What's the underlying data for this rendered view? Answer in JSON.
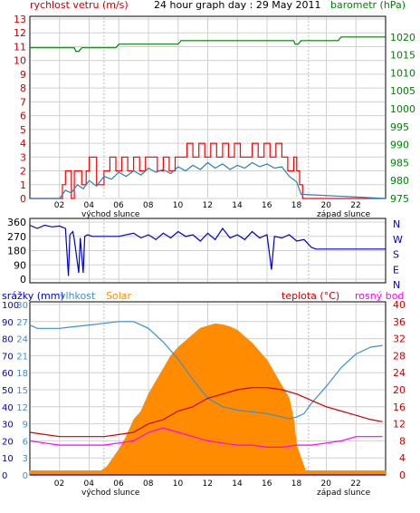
{
  "header": {
    "left_label": "rychlost vetru (m/s)",
    "title": "24 hour graph day : 29 May 2011",
    "right_label": "barometr (hPa)"
  },
  "colors": {
    "wind_gust": "#ff0000",
    "wind_avg": "#2a7fb8",
    "barometer": "#008000",
    "direction": "#0000cc",
    "rain": "#0000cc",
    "humidity": "#3a8fd6",
    "solar": "#ff8c00",
    "temperature": "#cc0000",
    "dew_point": "#ff00ff",
    "left_axis_red": "#cc0000",
    "right_axis_green": "#008000",
    "grid": "#d0d0d0"
  },
  "x_ticks": [
    "02",
    "04",
    "06",
    "08",
    "10",
    "12",
    "14",
    "16",
    "18",
    "20",
    "22"
  ],
  "markers": {
    "sunrise_label": "východ slunce",
    "sunset_label": "západ slunce"
  },
  "chart_data": [
    {
      "type": "line",
      "name": "wind-and-barometer",
      "xlim": [
        0,
        24
      ],
      "yleft": {
        "label": "rychlost vetru (m/s)",
        "lim": [
          0,
          13
        ],
        "ticks": [
          0,
          1,
          2,
          3,
          4,
          5,
          6,
          7,
          8,
          9,
          10,
          11,
          12,
          13
        ]
      },
      "yright": {
        "label": "barometr (hPa)",
        "lim": [
          975,
          1025
        ],
        "ticks": [
          975,
          980,
          985,
          990,
          995,
          1000,
          1005,
          1010,
          1015,
          1020
        ]
      },
      "series": [
        {
          "key": "gust",
          "axis": "left",
          "x": [
            0,
            2.1,
            2.2,
            2.4,
            2.8,
            3.0,
            3.5,
            3.8,
            4.0,
            4.5,
            5.0,
            5.4,
            5.8,
            6.2,
            6.6,
            7.0,
            7.4,
            7.8,
            8.2,
            8.6,
            9.0,
            9.4,
            9.8,
            10.2,
            10.6,
            11.0,
            11.4,
            11.8,
            12.2,
            12.6,
            13.0,
            13.4,
            13.8,
            14.2,
            14.6,
            15.0,
            15.4,
            15.8,
            16.2,
            16.6,
            17.0,
            17.4,
            17.8,
            18.0,
            18.2,
            18.4,
            24
          ],
          "y": [
            0,
            0,
            1,
            2,
            0,
            2,
            1,
            2,
            3,
            1,
            2,
            3,
            2,
            3,
            2,
            3,
            2,
            3,
            3,
            2,
            3,
            2,
            3,
            3,
            4,
            3,
            4,
            3,
            4,
            3,
            4,
            3,
            4,
            3,
            3,
            4,
            3,
            4,
            3,
            4,
            3,
            2,
            3,
            2,
            1,
            0,
            0
          ]
        },
        {
          "key": "average",
          "axis": "left",
          "x": [
            0,
            2.0,
            2.4,
            2.8,
            3.2,
            3.6,
            4.0,
            4.5,
            5.0,
            5.5,
            6.0,
            6.5,
            7.0,
            7.5,
            8.0,
            8.5,
            9.0,
            9.5,
            10.0,
            10.5,
            11.0,
            11.5,
            12.0,
            12.5,
            13.0,
            13.5,
            14.0,
            14.5,
            15.0,
            15.5,
            16.0,
            16.5,
            17.0,
            17.5,
            18.0,
            18.3,
            24
          ],
          "y": [
            0,
            0,
            0.6,
            0.4,
            1.0,
            0.7,
            1.3,
            0.9,
            1.6,
            1.4,
            1.9,
            1.6,
            2.0,
            1.7,
            2.2,
            1.9,
            2.1,
            1.8,
            2.3,
            2.0,
            2.4,
            2.1,
            2.6,
            2.2,
            2.5,
            2.1,
            2.4,
            2.2,
            2.6,
            2.3,
            2.5,
            2.2,
            2.3,
            1.6,
            1.2,
            0.3,
            0
          ]
        },
        {
          "key": "barometer",
          "axis": "right",
          "x": [
            0,
            3.0,
            3.1,
            3.3,
            3.5,
            5.8,
            6.0,
            10.0,
            10.2,
            17.8,
            17.9,
            18.1,
            18.3,
            20.8,
            21.0,
            24
          ],
          "y": [
            1017,
            1017,
            1016,
            1016,
            1017,
            1017,
            1018,
            1018,
            1019,
            1019,
            1018,
            1018,
            1019,
            1019,
            1020,
            1020
          ]
        }
      ]
    },
    {
      "type": "line",
      "name": "wind-direction",
      "xlim": [
        0,
        24
      ],
      "yleft": {
        "lim": [
          0,
          360
        ],
        "ticks": [
          0,
          90,
          180,
          270,
          360
        ]
      },
      "yright": {
        "ticks": [
          "N",
          "W",
          "S",
          "E",
          "N"
        ]
      },
      "series": [
        {
          "key": "direction",
          "x": [
            0,
            0.5,
            1.0,
            1.5,
            2.0,
            2.4,
            2.6,
            2.7,
            2.9,
            3.0,
            3.3,
            3.4,
            3.6,
            3.7,
            3.9,
            4.2,
            5.0,
            6.0,
            7.0,
            7.5,
            8.0,
            8.5,
            9.0,
            9.5,
            10.0,
            10.5,
            11.0,
            11.5,
            12.0,
            12.5,
            13.0,
            13.5,
            14.0,
            14.5,
            15.0,
            15.5,
            16.0,
            16.3,
            16.5,
            17.0,
            17.5,
            18.0,
            18.5,
            19.0,
            19.3,
            24
          ],
          "y": [
            340,
            320,
            340,
            330,
            335,
            320,
            20,
            280,
            300,
            250,
            40,
            260,
            40,
            270,
            280,
            270,
            270,
            270,
            290,
            260,
            280,
            250,
            290,
            260,
            300,
            270,
            280,
            240,
            290,
            250,
            320,
            260,
            280,
            250,
            300,
            260,
            280,
            60,
            270,
            260,
            280,
            240,
            250,
            200,
            190,
            190
          ]
        }
      ]
    },
    {
      "type": "area",
      "name": "rain-humidity-solar-temperature",
      "xlim": [
        0,
        24
      ],
      "yleft_rain": {
        "label": "srážky (mm)",
        "ticks": [
          "0",
          "10",
          "20",
          "30",
          "40",
          "50",
          "60",
          "70",
          "80",
          "90",
          "100"
        ]
      },
      "yleft_humidity": {
        "label": "vlhkost",
        "ticks": [
          "0",
          "3",
          "6",
          "9",
          "12",
          "15",
          "18",
          "21",
          "24",
          "27",
          "30"
        ]
      },
      "solar_label": "Solar",
      "yright": {
        "label_temp": "teplota (°C)",
        "label_dew": "rosný bod",
        "lim": [
          0,
          40
        ],
        "ticks": [
          0,
          4,
          8,
          12,
          16,
          20,
          24,
          28,
          32,
          36,
          40
        ]
      },
      "series": [
        {
          "key": "solar",
          "x": [
            0,
            4.8,
            5.2,
            5.6,
            6.0,
            6.5,
            7.0,
            7.5,
            8.0,
            8.5,
            9.0,
            9.5,
            10.0,
            10.5,
            11.0,
            11.5,
            12.0,
            12.5,
            13.0,
            13.5,
            14.0,
            14.5,
            15.0,
            15.5,
            16.0,
            16.5,
            17.0,
            17.5,
            17.8,
            18.0,
            18.3,
            18.6,
            24
          ],
          "y": [
            1,
            1,
            2,
            4,
            6,
            9,
            13,
            15,
            19,
            22,
            25,
            28,
            30,
            31.5,
            33,
            34.5,
            35,
            35.5,
            35.3,
            34.8,
            34,
            32.5,
            31,
            29,
            27,
            24,
            21,
            18,
            13,
            7,
            4,
            1,
            1
          ]
        },
        {
          "key": "humidity",
          "x": [
            0,
            0.5,
            1.0,
            2.0,
            3.0,
            4.0,
            5.0,
            6.0,
            7.0,
            7.5,
            8.0,
            9.0,
            10.0,
            11.0,
            12.0,
            13.0,
            14.0,
            15.0,
            16.0,
            17.0,
            17.5,
            18.0,
            18.5,
            19.0,
            20.0,
            21.0,
            22.0,
            23.0,
            23.8
          ],
          "y": [
            88,
            86,
            86,
            86,
            87,
            88,
            89,
            90,
            90,
            88,
            86,
            78,
            68,
            56,
            45,
            40,
            38,
            37,
            36,
            34,
            33,
            34,
            36,
            42,
            52,
            63,
            71,
            75,
            76
          ]
        },
        {
          "key": "temperature",
          "x": [
            0,
            1.0,
            2.0,
            3.0,
            4.0,
            5.0,
            6.0,
            7.0,
            8.0,
            9.0,
            10.0,
            11.0,
            12.0,
            13.0,
            14.0,
            15.0,
            16.0,
            17.0,
            18.0,
            19.0,
            20.0,
            21.0,
            22.0,
            23.0,
            23.8
          ],
          "y": [
            10,
            9.5,
            9,
            9,
            9,
            9,
            9.5,
            10,
            12,
            13,
            15,
            16,
            18,
            19,
            20,
            20.5,
            20.5,
            20,
            19,
            17.5,
            16,
            15,
            14,
            13,
            12.5
          ]
        },
        {
          "key": "dew_point",
          "x": [
            0,
            1.0,
            2.0,
            3.0,
            4.0,
            5.0,
            6.0,
            7.0,
            8.0,
            9.0,
            10.0,
            11.0,
            12.0,
            13.0,
            14.0,
            15.0,
            16.0,
            17.0,
            18.0,
            19.0,
            20.0,
            21.0,
            22.0,
            23.0,
            23.8
          ],
          "y": [
            8,
            7.5,
            7,
            7,
            7,
            7,
            7.5,
            8,
            10,
            11,
            10,
            9,
            8,
            7.5,
            7,
            7,
            6.5,
            6.5,
            7,
            7,
            7.5,
            8,
            9,
            9,
            9
          ]
        },
        {
          "key": "rain",
          "x": [
            0,
            24
          ],
          "y": [
            0,
            0
          ]
        }
      ]
    }
  ]
}
